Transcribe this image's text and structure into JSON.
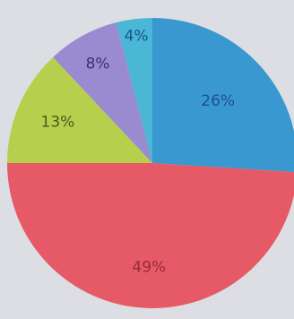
{
  "chart_data": {
    "type": "pie",
    "title": "",
    "start_angle_deg": 0,
    "direction": "clockwise",
    "slices": [
      {
        "label": "26%",
        "value": 26,
        "color": "#3a98d0",
        "label_color": "#1e4f8a"
      },
      {
        "label": "49%",
        "value": 49,
        "color": "#e55a66",
        "label_color": "#9a2a3c"
      },
      {
        "label": "13%",
        "value": 13,
        "color": "#b6cf4c",
        "label_color": "#4a5a1e"
      },
      {
        "label": "8%",
        "value": 8,
        "color": "#9a8ad0",
        "label_color": "#3d2e70"
      },
      {
        "label": "4%",
        "value": 4,
        "color": "#4ab7d7",
        "label_color": "#1e4f8a"
      }
    ]
  }
}
